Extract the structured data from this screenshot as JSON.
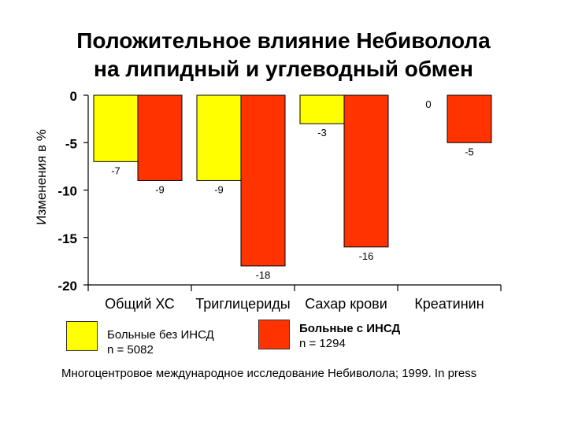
{
  "title_line1": "Положительное влияние Небиволола",
  "title_line2": "на липидный и углеводный обмен",
  "chart_data": {
    "type": "bar",
    "title": "Положительное влияние Небиволола на липидный и углеводный обмен",
    "ylabel": "Изменения в %",
    "xlabel": "",
    "ylim": [
      -20,
      0
    ],
    "yticks": [
      "0",
      "-5",
      "-10",
      "-15",
      "-20"
    ],
    "grid": false,
    "categories": [
      "Общий ХС",
      "Триглицериды",
      "Сахар крови",
      "Креатинин"
    ],
    "series": [
      {
        "name": "Больные без ИНСД",
        "color": "#ffff00",
        "values": [
          -7,
          -9,
          -3,
          0
        ]
      },
      {
        "name": "Больные с ИНСД",
        "color": "#ff3300",
        "values": [
          -9,
          -18,
          -16,
          -5
        ]
      }
    ],
    "data_labels": [
      [
        "-7",
        "-9",
        "-3",
        "0"
      ],
      [
        "-9",
        "-18",
        "-16",
        "-5"
      ]
    ]
  },
  "legend": [
    {
      "name": "Больные без ИНСД",
      "n": "n = 5082",
      "color": "#ffff00"
    },
    {
      "name": "Больные с ИНСД",
      "n": "n = 1294",
      "color": "#ff3300"
    }
  ],
  "footnote": "Многоцентровое международное исследование Небиволола; 1999. In press"
}
